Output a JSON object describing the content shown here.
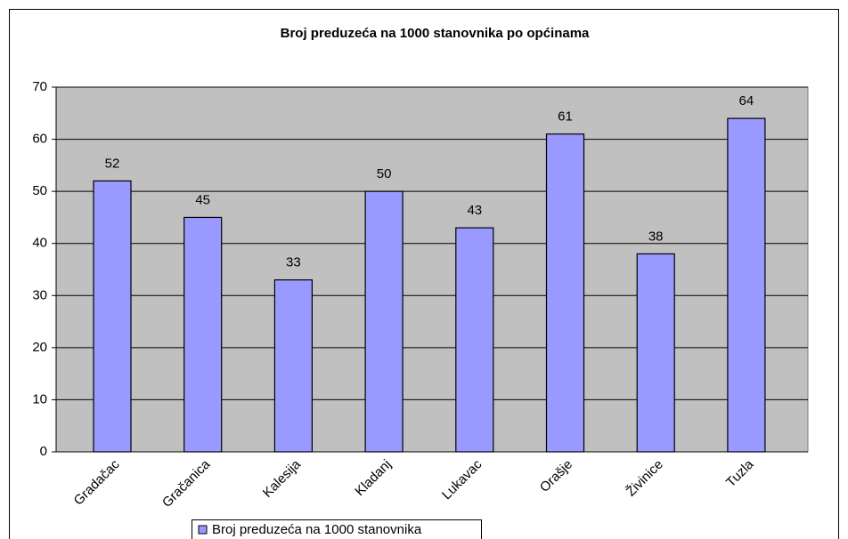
{
  "chart_data": {
    "type": "bar",
    "title": "Broj preduzeća na 1000 stanovnika po općinama",
    "categories": [
      "Gradačac",
      "Gračanica",
      "Kalesija",
      "Kladanj",
      "Lukavac",
      "Orašje",
      "Živinice",
      "Tuzla"
    ],
    "series": [
      {
        "name": "Broj preduzeća na 1000 stanovnika",
        "color": "#9999ff",
        "values": [
          52,
          45,
          33,
          50,
          43,
          61,
          38,
          64
        ]
      }
    ],
    "ylim": [
      0,
      70
    ],
    "yticks": [
      0,
      10,
      20,
      30,
      40,
      50,
      60,
      70
    ],
    "grid": true,
    "legend": "bottom"
  }
}
